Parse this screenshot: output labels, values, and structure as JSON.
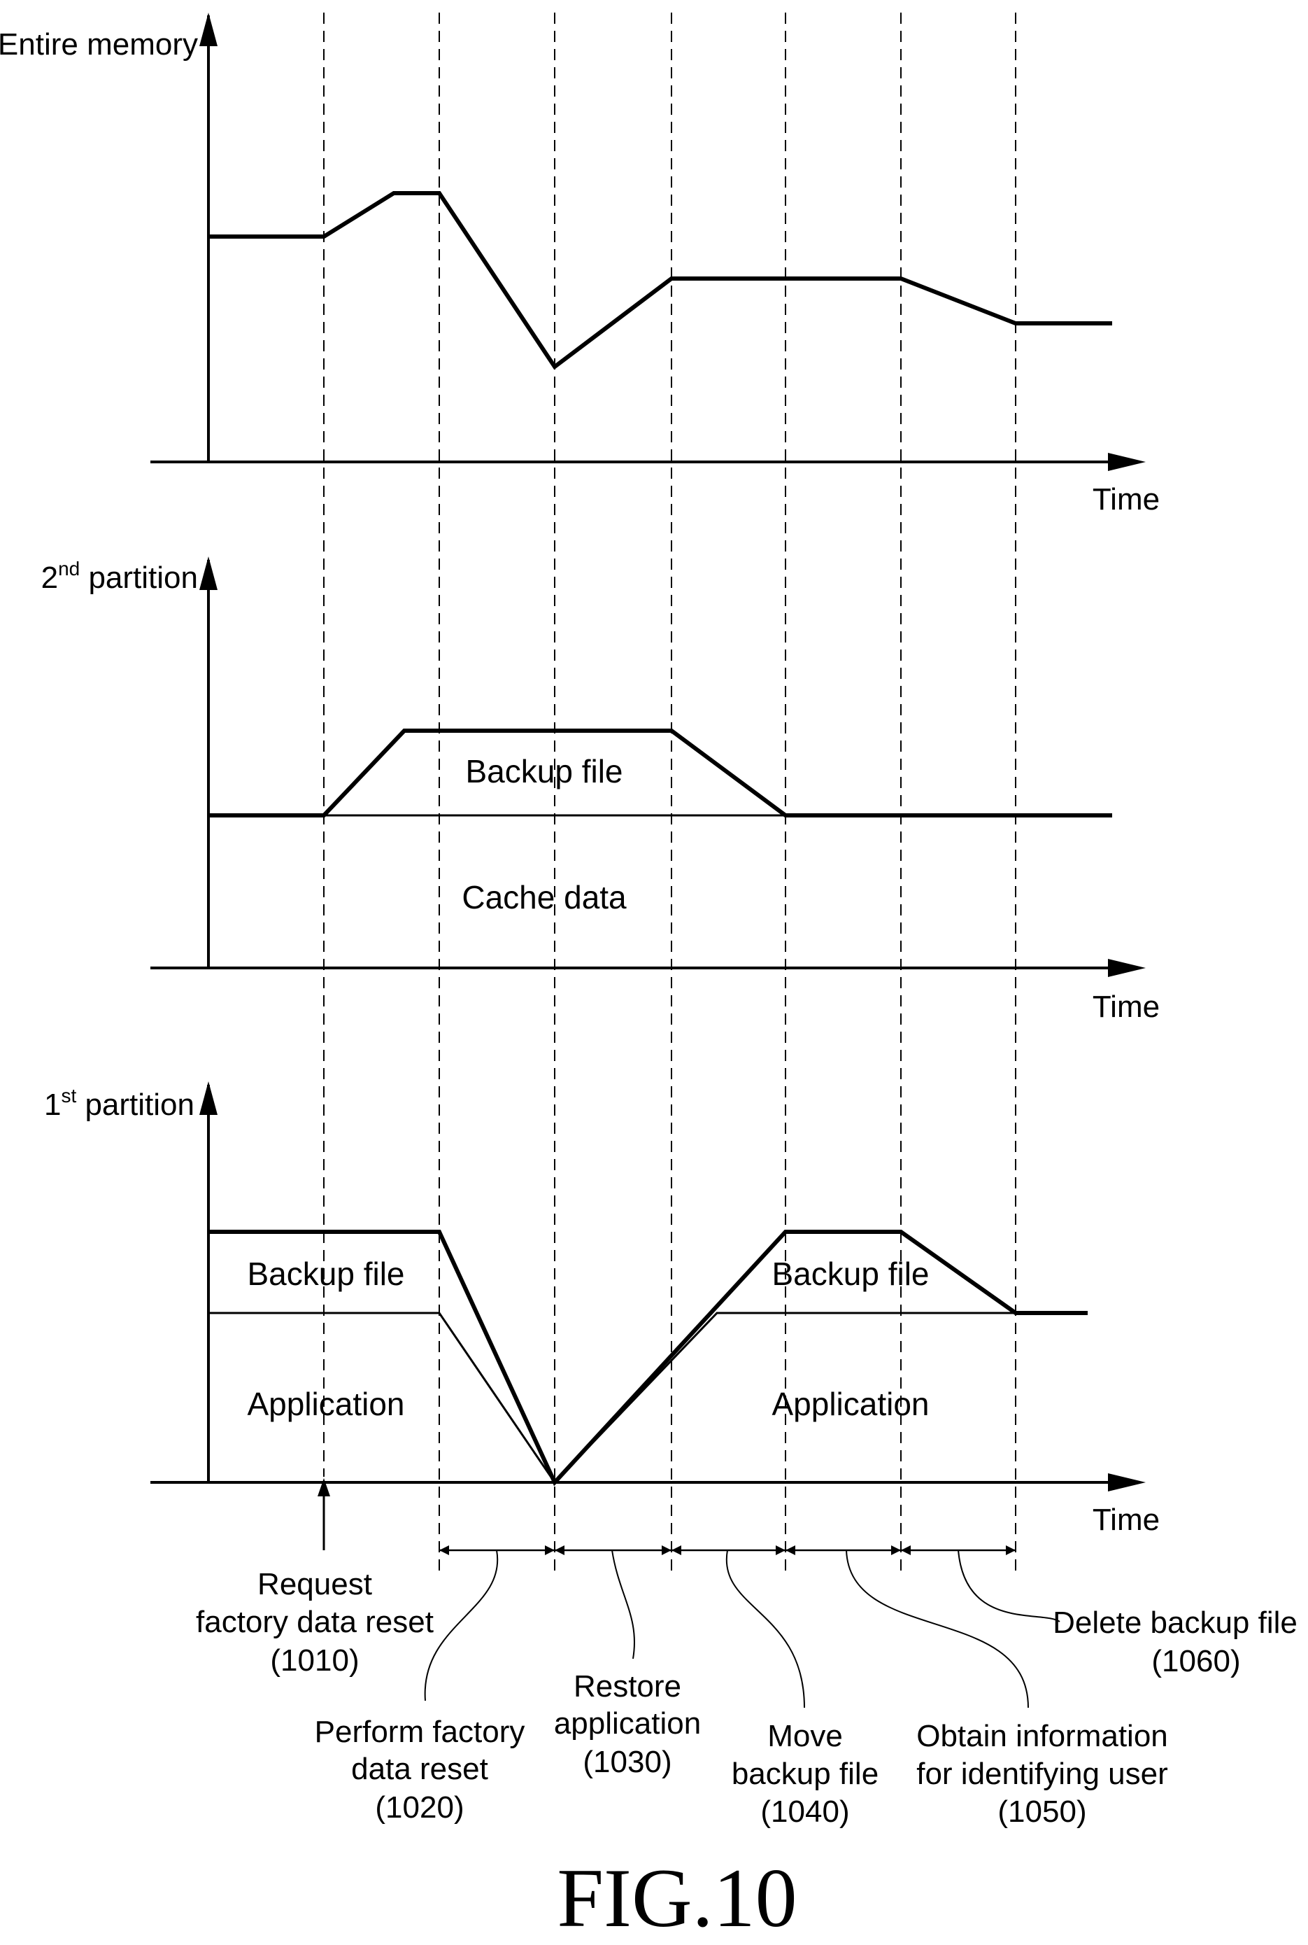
{
  "colors": {
    "line": "#000000",
    "background": "#ffffff"
  },
  "figure_label": "FIG.10",
  "time_label": "Time",
  "panels": {
    "entire_memory": {
      "ylabel": "Entire memory"
    },
    "second_partition": {
      "ylabel_prefix": "2",
      "ylabel_sup": "nd",
      "ylabel_suffix": " partition",
      "upper_region": "Backup file",
      "lower_region": "Cache data"
    },
    "first_partition": {
      "ylabel_prefix": "1",
      "ylabel_sup": "st",
      "ylabel_suffix": " partition",
      "left_upper_region": "Backup file",
      "left_lower_region": "Application",
      "right_upper_region": "Backup file",
      "right_lower_region": "Application"
    }
  },
  "events": {
    "e1010": {
      "line1": "Request",
      "line2": "factory data reset",
      "ref": "(1010)"
    },
    "e1020": {
      "line1": "Perform factory",
      "line2": "data reset",
      "ref": "(1020)"
    },
    "e1030": {
      "line1": "Restore",
      "line2": "application",
      "ref": "(1030)"
    },
    "e1040": {
      "line1": "Move",
      "line2": "backup file",
      "ref": "(1040)"
    },
    "e1050": {
      "line1": "Obtain information",
      "line2": "for identifying user",
      "ref": "(1050)"
    },
    "e1060": {
      "line1": "Delete backup file",
      "ref": "(1060)"
    }
  }
}
